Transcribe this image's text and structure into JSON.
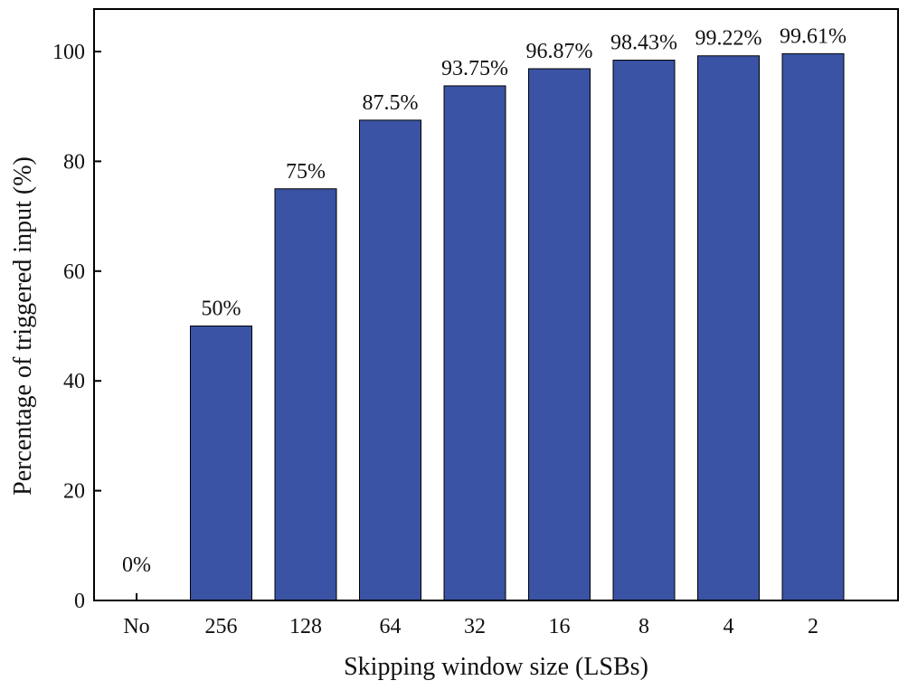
{
  "chart_data": {
    "type": "bar",
    "categories": [
      "No",
      "256",
      "128",
      "64",
      "32",
      "16",
      "8",
      "4",
      "2"
    ],
    "values": [
      0,
      50,
      75,
      87.5,
      93.75,
      96.87,
      98.43,
      99.22,
      99.61
    ],
    "data_labels": [
      "0%",
      "50%",
      "75%",
      "87.5%",
      "93.75%",
      "96.87%",
      "98.43%",
      "99.22%",
      "99.61%"
    ],
    "title": "",
    "xlabel": "Skipping window size (LSBs)",
    "ylabel": "Percentage of triggered input (%)",
    "ylim": [
      0,
      100
    ],
    "yticks": [
      0,
      20,
      40,
      60,
      80,
      100
    ],
    "grid": false,
    "legend": "none",
    "bar_color": "#3a53a4"
  }
}
